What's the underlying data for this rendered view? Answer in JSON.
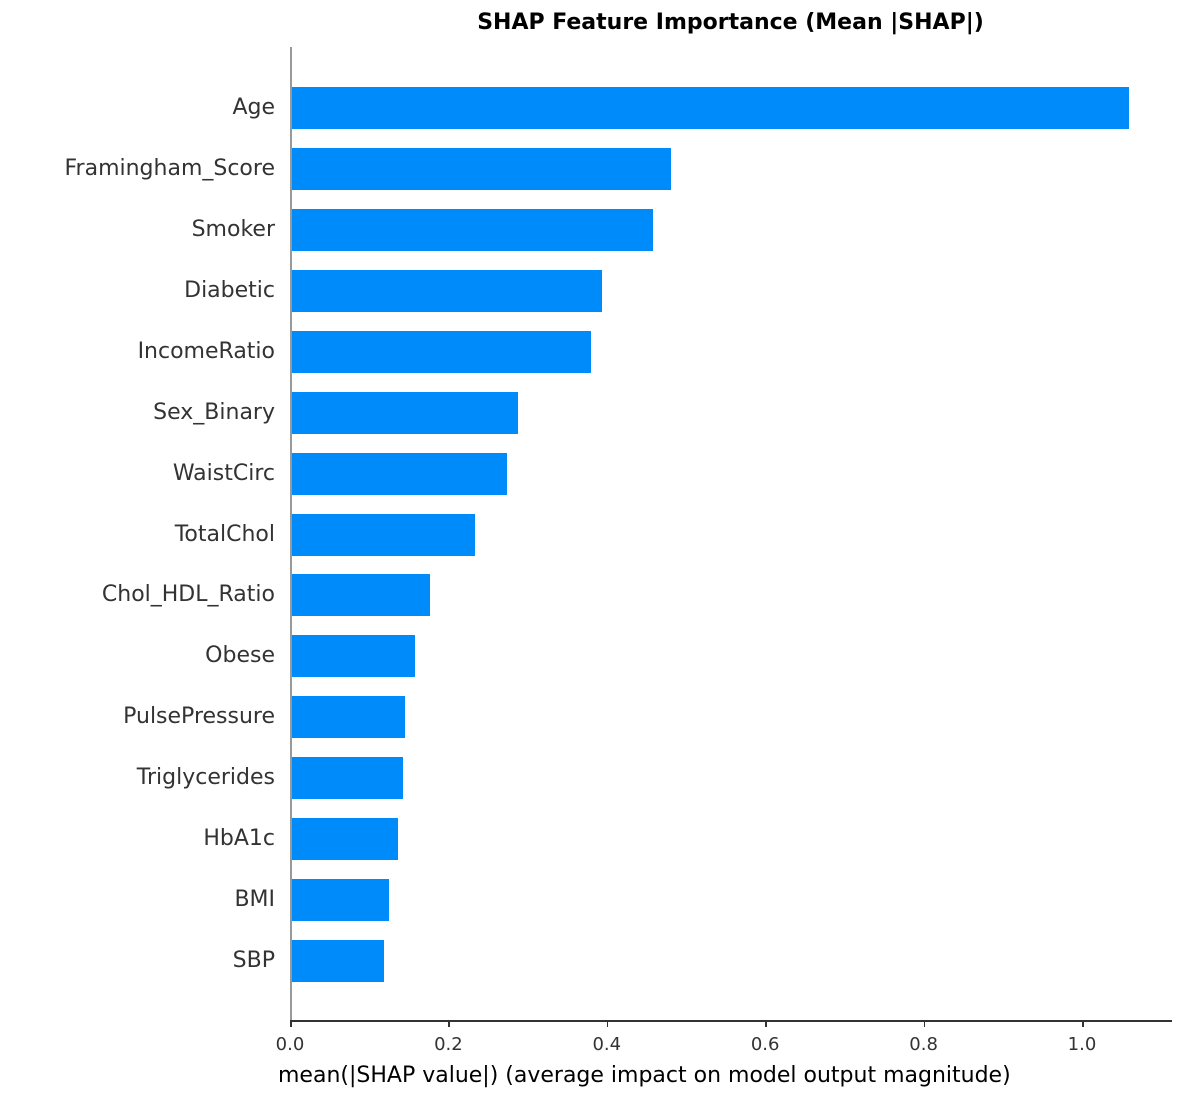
{
  "chart_data": {
    "type": "bar",
    "orientation": "horizontal",
    "title": "SHAP Feature Importance (Mean |SHAP|)",
    "xlabel": "mean(|SHAP value|) (average impact on model output magnitude)",
    "ylabel": "",
    "categories": [
      "Age",
      "Framingham_Score",
      "Smoker",
      "Diabetic",
      "IncomeRatio",
      "Sex_Binary",
      "WaistCirc",
      "TotalChol",
      "Chol_HDL_Ratio",
      "Obese",
      "PulsePressure",
      "Triglycerides",
      "HbA1c",
      "BMI",
      "SBP"
    ],
    "values": [
      1.059,
      0.481,
      0.458,
      0.394,
      0.38,
      0.288,
      0.274,
      0.234,
      0.177,
      0.158,
      0.145,
      0.143,
      0.136,
      0.125,
      0.119
    ],
    "xlim": [
      0.0,
      1.112
    ],
    "xticks": [
      "0.0",
      "0.2",
      "0.4",
      "0.6",
      "0.8",
      "1.0"
    ],
    "xtick_values": [
      0.0,
      0.2,
      0.4,
      0.6,
      0.8,
      1.0
    ],
    "grid": false,
    "legend": null,
    "bar_color": "#008bfb"
  }
}
